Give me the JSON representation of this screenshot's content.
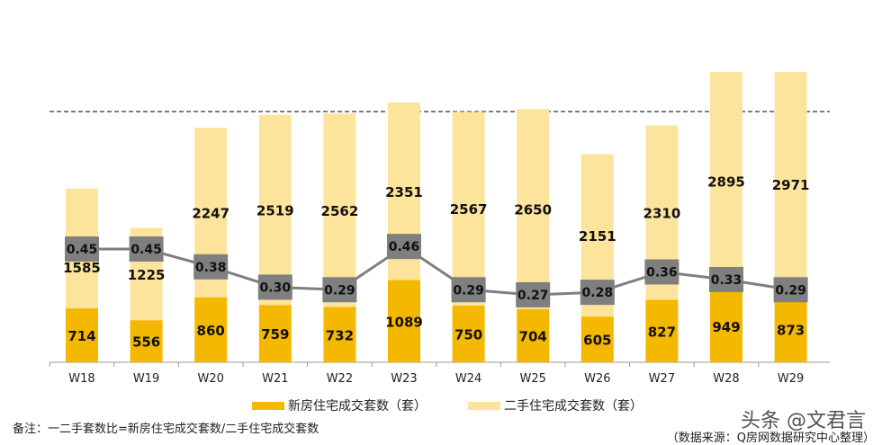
{
  "chart_data": {
    "type": "bar",
    "stacked": true,
    "categories": [
      "W18",
      "W19",
      "W20",
      "W21",
      "W22",
      "W23",
      "W24",
      "W25",
      "W26",
      "W27",
      "W28",
      "W29"
    ],
    "series": [
      {
        "name": "新房住宅成交套数（套）",
        "color": "#F5B800",
        "values": [
          714,
          556,
          860,
          759,
          732,
          1089,
          750,
          704,
          605,
          827,
          949,
          873
        ]
      },
      {
        "name": "二手住宅成交套数（套）",
        "color": "#FDE49C",
        "values": [
          1585,
          1225,
          2247,
          2519,
          2562,
          2351,
          2567,
          2650,
          2151,
          2310,
          2895,
          2971
        ]
      }
    ],
    "line_series": {
      "name": "一二手套数比",
      "color": "#7F7F7F",
      "values": [
        0.45,
        0.45,
        0.38,
        0.3,
        0.29,
        0.46,
        0.29,
        0.27,
        0.28,
        0.36,
        0.33,
        0.29
      ],
      "labels": [
        "0.45",
        "0.45",
        "0.38",
        "0.30",
        "0.29",
        "0.46",
        "0.29",
        "0.27",
        "0.28",
        "0.36",
        "0.33",
        "0.29"
      ]
    },
    "reference_line": {
      "style": "dashed",
      "value": 3320
    },
    "grid": false,
    "legend": "bottom"
  },
  "legend": {
    "new": "新房住宅成交套数（套）",
    "second": "二手住宅成交套数（套）"
  },
  "note": "备注：一二手套数比=新房住宅成交套数/二手住宅成交套数",
  "source": "（数据来源：Q房网数据研究中心整理）",
  "watermark": "头条 @文君言"
}
